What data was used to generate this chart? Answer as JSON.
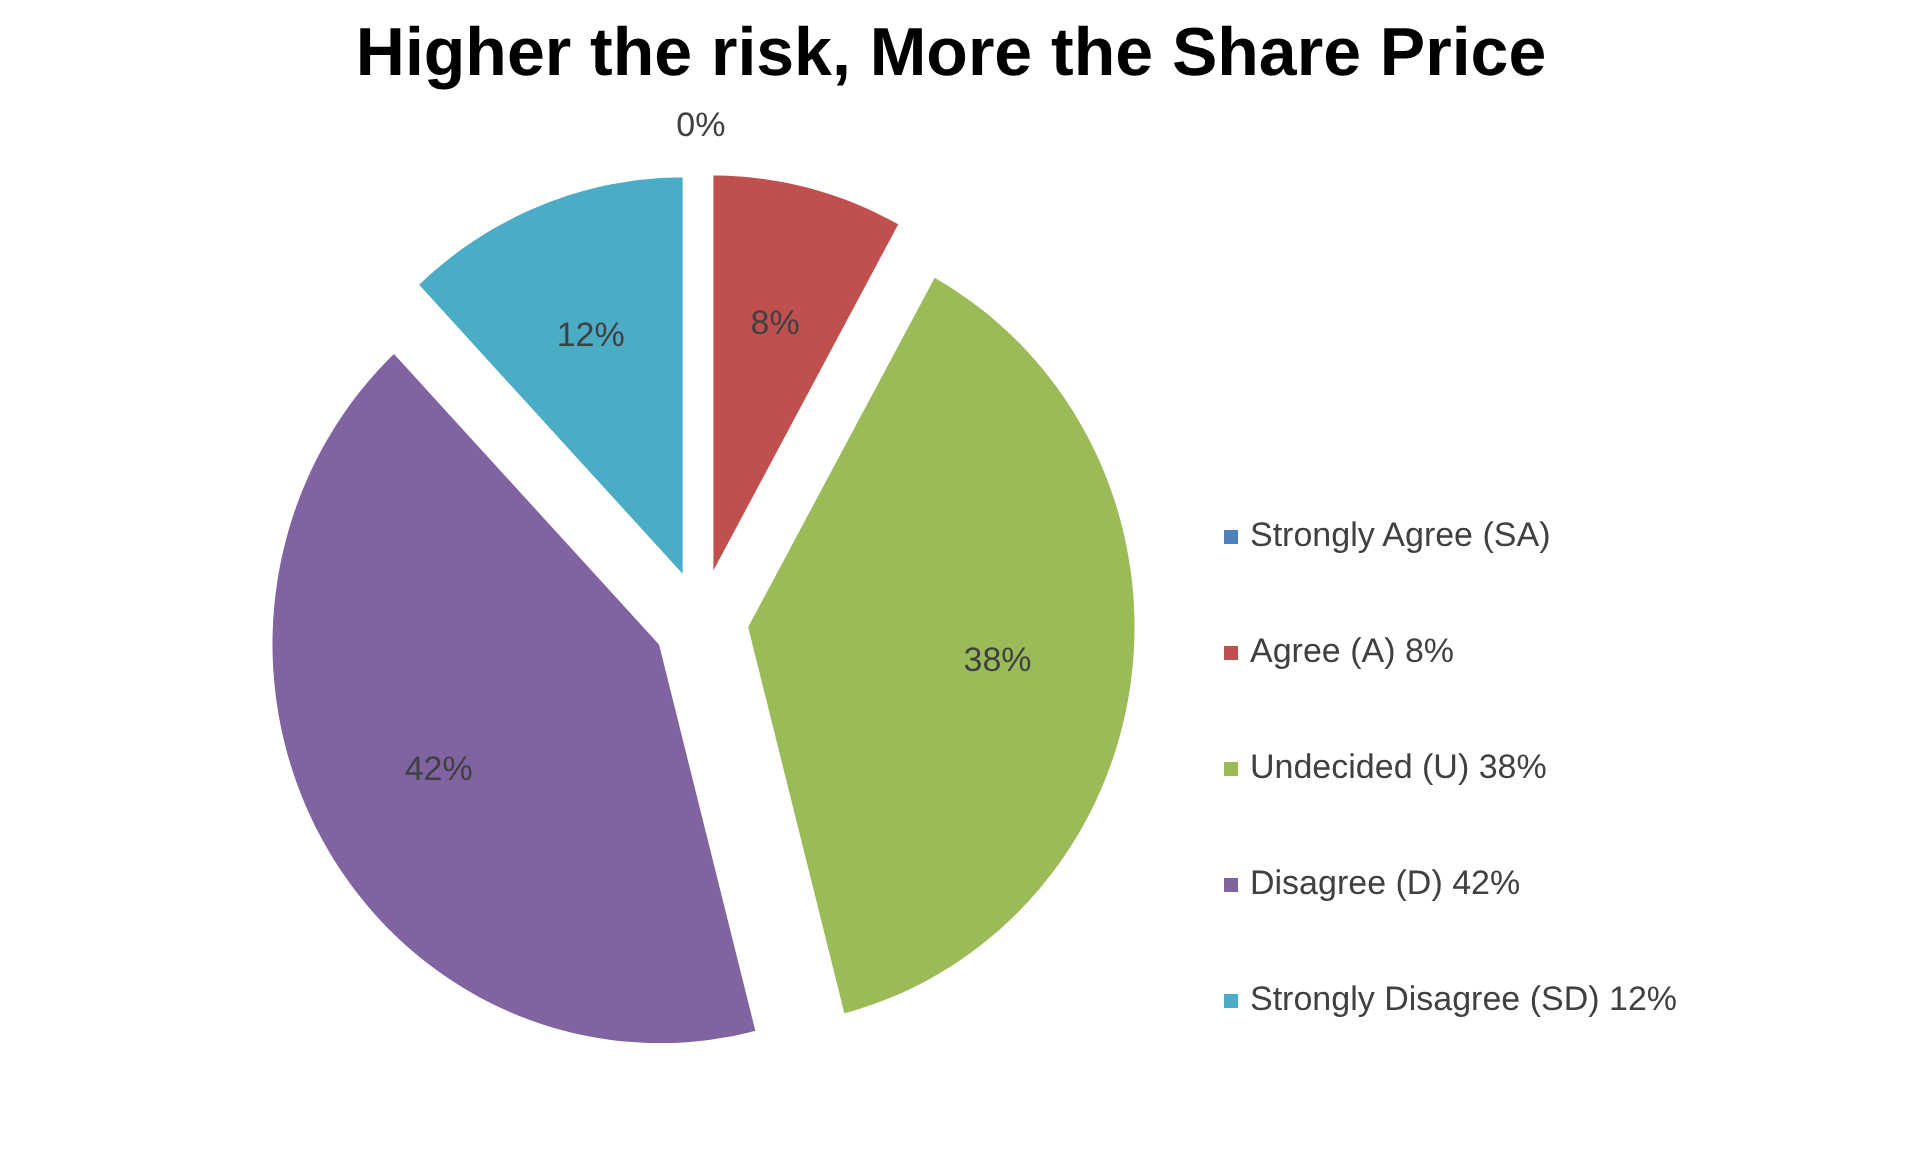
{
  "chart_data": {
    "type": "pie",
    "title": "Higher the risk, More the Share Price",
    "categories": [
      "Strongly Agree (SA)",
      "Agree (A) 8%",
      "Undecided (U) 38%",
      "Disagree (D) 42%",
      "Strongly Disagree (SD) 12%"
    ],
    "values": [
      0,
      8,
      38,
      42,
      12
    ],
    "colors": [
      "#4f81bd",
      "#c0504d",
      "#9bbb59",
      "#8064a2",
      "#4bacc6"
    ],
    "value_labels": [
      "0%",
      "8%",
      "38%",
      "42%",
      "12%"
    ],
    "legend": "right"
  }
}
